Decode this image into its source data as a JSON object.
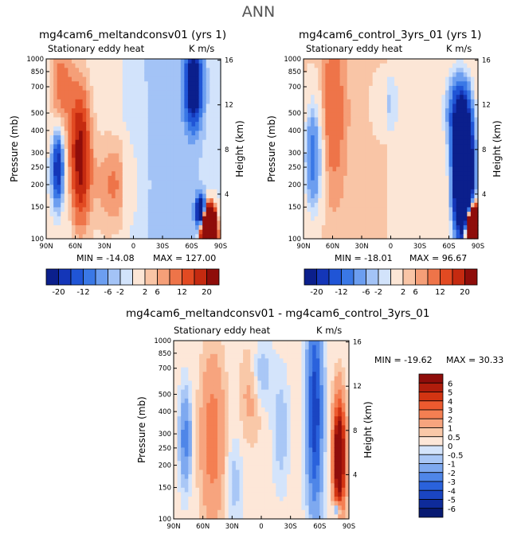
{
  "page": {
    "main_title": "ANN"
  },
  "chart_data": [
    {
      "id": "panel-1",
      "type": "heatmap",
      "title": "mg4cam6_meltandconsv01 (yrs 1)",
      "subtitle": "Stationary eddy heat",
      "units": "K m/s",
      "xlabel": "",
      "ylabel": "Pressure (mb)",
      "ylabel_right": "Height (km)",
      "x_ticks": [
        "90N",
        "60N",
        "30N",
        "0",
        "30S",
        "60S",
        "90S"
      ],
      "y_ticks": [
        "100",
        "150",
        "200",
        "250",
        "300",
        "400",
        "500",
        "700",
        "850",
        "1000"
      ],
      "y_ticks_right": [
        "16",
        "12",
        "8",
        "4"
      ],
      "x_range": [
        90,
        -90
      ],
      "y_range_mb": [
        1000,
        100
      ],
      "min_label": "MIN = -14.08",
      "max_label": "MAX = 127.00",
      "min": -14.08,
      "max": 127.0,
      "colorbar_labels": [
        "-20",
        "-12",
        "-6",
        "-2",
        "2",
        "6",
        "12",
        "20"
      ]
    },
    {
      "id": "panel-2",
      "type": "heatmap",
      "title": "mg4cam6_control_3yrs_01 (yrs 1)",
      "subtitle": "Stationary eddy heat",
      "units": "K m/s",
      "xlabel": "",
      "ylabel": "Pressure (mb)",
      "ylabel_right": "Height (km)",
      "x_ticks": [
        "90N",
        "60N",
        "30N",
        "0",
        "30S",
        "60S",
        "90S"
      ],
      "y_ticks": [
        "100",
        "150",
        "200",
        "250",
        "300",
        "400",
        "500",
        "700",
        "850",
        "1000"
      ],
      "y_ticks_right": [
        "16",
        "12",
        "8",
        "4"
      ],
      "x_range": [
        90,
        -90
      ],
      "y_range_mb": [
        1000,
        100
      ],
      "min_label": "MIN = -18.01",
      "max_label": "MAX = 96.67",
      "min": -18.01,
      "max": 96.67,
      "colorbar_labels": [
        "-20",
        "-12",
        "-6",
        "-2",
        "2",
        "6",
        "12",
        "20"
      ]
    },
    {
      "id": "panel-diff",
      "type": "heatmap",
      "title": "mg4cam6_meltandconsv01 - mg4cam6_control_3yrs_01",
      "subtitle": "Stationary eddy heat",
      "units": "K m/s",
      "xlabel": "",
      "ylabel": "Pressure (mb)",
      "ylabel_right": "Height (km)",
      "x_ticks": [
        "90N",
        "60N",
        "30N",
        "0",
        "30S",
        "60S",
        "90S"
      ],
      "y_ticks": [
        "100",
        "150",
        "200",
        "250",
        "300",
        "400",
        "500",
        "700",
        "850",
        "1000"
      ],
      "y_ticks_right": [
        "16",
        "12",
        "8",
        "4"
      ],
      "x_range": [
        90,
        -90
      ],
      "y_range_mb": [
        1000,
        100
      ],
      "min_label": "MIN = -19.62",
      "max_label": "MAX =  30.33",
      "min": -19.62,
      "max": 30.33,
      "colorbar_labels": [
        "6",
        "5",
        "4",
        "3",
        "2",
        "1",
        "0.5",
        "0",
        "-0.5",
        "-1",
        "-2",
        "-3",
        "-4",
        "-5",
        "-6"
      ]
    }
  ],
  "palettes": {
    "h14": [
      "#0b1f8c",
      "#1436b8",
      "#2055d6",
      "#3a78e6",
      "#6c9ef0",
      "#a3c3f6",
      "#d2e3fb",
      "#fce6d6",
      "#f9c5a6",
      "#f59f78",
      "#ee7449",
      "#e24a22",
      "#c52a10",
      "#8f0d0a"
    ],
    "v16": [
      "#8f0d0a",
      "#b01d0c",
      "#d23412",
      "#ec5a2f",
      "#f47f52",
      "#f7a47e",
      "#f9c8a8",
      "#fde7d8",
      "#d4e4fb",
      "#a9c7f6",
      "#7ea9f0",
      "#4f86e8",
      "#2a62dc",
      "#1a45c2",
      "#0e2b9a",
      "#081a72"
    ]
  }
}
